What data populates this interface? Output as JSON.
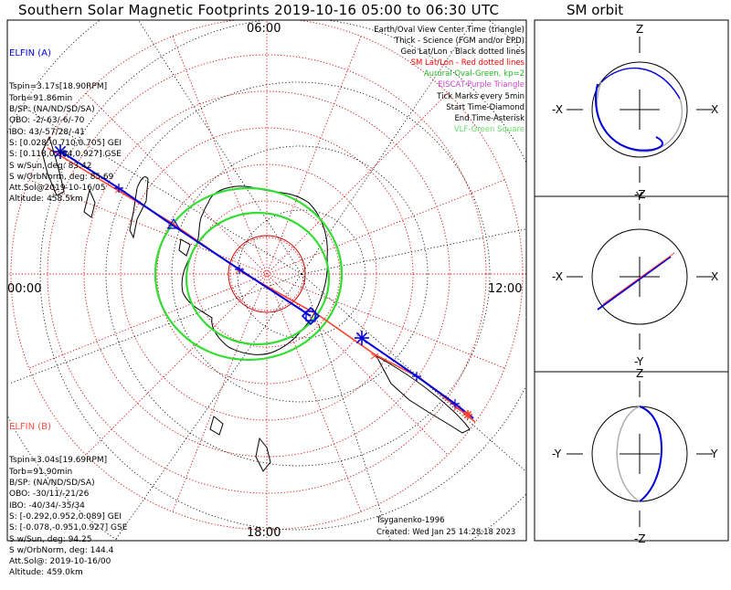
{
  "title": "Southern Solar Magnetic Footprints 2019-10-16 05:00 to 06:30 UTC",
  "sm_orbit_title": "SM orbit",
  "polar_labels": {
    "top": "06:00",
    "left": "00:00",
    "right": "12:00",
    "bottom": "18:00"
  },
  "elfin_a": {
    "name": "ELFIN (A)",
    "color": "#0000dd",
    "lines": [
      "Tspin=3.17s[18.90RPM]",
      "Torb=91.86min",
      "B/SP: (NA/ND/SD/SA)",
      "OBO: -2/-63/-6/-70",
      "IBO: 43/-57/28/-41",
      "S: [0.028,-0.710,0.705] GEI",
      "S: [0.118,0.354,0.927] GSE",
      "S w/Sun, deg: 83.42",
      "S w/OrbNorm, deg: 85.69",
      "Att.Sol@2019-10-16/05",
      "Altitude: 458.5km"
    ]
  },
  "elfin_b": {
    "name": "ELFIN (B)",
    "color": "#ff5040",
    "lines": [
      "Tspin=3.04s[19.69RPM]",
      "Torb=91.90min",
      "B/SP: (NA/ND/SD/SA)",
      "OBO: -30/11/-21/26",
      "IBO: -40/34/-35/34",
      "S: [-0.292,0.952,0.089] GEI",
      "S: [-0.078,-0.951,0.927] GSE",
      "S w/Sun, deg: 94.25",
      "S w/OrbNorm, deg: 144.4",
      "Att.Sol@: 2019-10-16/00",
      "Altitude: 459.0km"
    ]
  },
  "legend": [
    {
      "text": "Earth/Oval View Center Time (triangle)",
      "color": "#000000"
    },
    {
      "text": "Thick - Science (FGM and/or EPD)",
      "color": "#000000"
    },
    {
      "text": "Geo Lat/Lon - Black dotted lines",
      "color": "#000000"
    },
    {
      "text": "SM Lat/Lon - Red dotted lines",
      "color": "#ff0000"
    },
    {
      "text": "Auroral Oval-Green, kp=2",
      "color": "#22bb22"
    },
    {
      "text": "EISCAT-Purple Triangle",
      "color": "#cc44cc"
    },
    {
      "text": "Tick Marks every 5min",
      "color": "#000000"
    },
    {
      "text": "Start Time-Diamond",
      "color": "#000000"
    },
    {
      "text": "End Time-Asterisk",
      "color": "#000000"
    },
    {
      "text": "VLF-Green Square",
      "color": "#66dd66"
    }
  ],
  "footer": {
    "credit": "Tsyganenko-1996",
    "created": "Created: Wed Jan 25 14:28:18 2023"
  },
  "sm_panels": [
    {
      "top": "Z",
      "bottom": "-Z",
      "left": "-X",
      "right": "X"
    },
    {
      "top": "Y",
      "bottom": "-Y",
      "left": "-X",
      "right": "X"
    },
    {
      "top": "Z",
      "bottom": "-Z",
      "left": "-Y",
      "right": "Y"
    }
  ],
  "colors": {
    "elfin_a": "#0000dd",
    "elfin_b": "#ff4030",
    "oval": "#33dd33",
    "sm_grid": "#dd0000",
    "geo_grid": "#000000"
  },
  "chart_data": {
    "type": "polar-map",
    "projection": "southern hemisphere, solar magnetic, MLT around the edge",
    "mlt_labels": [
      "00:00",
      "06:00",
      "12:00",
      "18:00"
    ],
    "series": [
      {
        "name": "ELFIN (A)",
        "color": "#0000dd",
        "track": "footprint track, start diamond, end asterisk"
      },
      {
        "name": "ELFIN (B)",
        "color": "#ff4030",
        "track": "footprint track"
      }
    ],
    "auroral_oval_kp": 2
  }
}
